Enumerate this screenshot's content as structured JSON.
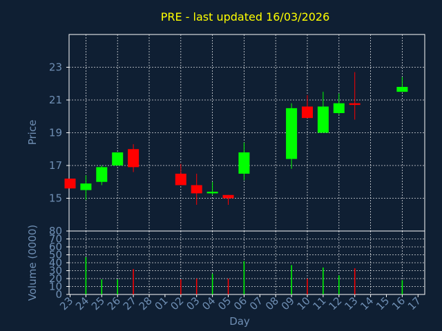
{
  "chart_data": [
    {
      "type": "candlestick",
      "title": "PRE - last updated 16/03/2026",
      "ylabel": "Price",
      "ylim": [
        13.0,
        25.0
      ],
      "yticks": [
        15,
        17,
        19,
        21,
        23
      ],
      "grid": true,
      "colors": {
        "up": "#00ff00",
        "down": "#ff0000",
        "grid": "#ffffff",
        "frame": "#ffffff",
        "text": "#6f8fb4",
        "title": "#ffff00",
        "background": "#0f1f33"
      },
      "x": [
        "23",
        "24",
        "25",
        "26",
        "27",
        "28",
        "01",
        "02",
        "03",
        "04",
        "05",
        "06",
        "07",
        "08",
        "09",
        "10",
        "11",
        "12",
        "13",
        "14",
        "15",
        "16",
        "17"
      ],
      "candles": [
        {
          "x": "23",
          "open": 16.2,
          "high": 16.2,
          "low": 15.6,
          "close": 15.6
        },
        {
          "x": "24",
          "open": 15.5,
          "high": 16.4,
          "low": 14.9,
          "close": 15.9
        },
        {
          "x": "25",
          "open": 16.0,
          "high": 17.0,
          "low": 15.8,
          "close": 16.9
        },
        {
          "x": "26",
          "open": 17.0,
          "high": 17.8,
          "low": 17.0,
          "close": 17.8
        },
        {
          "x": "27",
          "open": 18.0,
          "high": 18.3,
          "low": 16.6,
          "close": 16.9
        },
        {
          "x": "02",
          "open": 16.5,
          "high": 17.1,
          "low": 15.8,
          "close": 15.8
        },
        {
          "x": "03",
          "open": 15.8,
          "high": 16.5,
          "low": 14.6,
          "close": 15.3
        },
        {
          "x": "04",
          "open": 15.3,
          "high": 16.0,
          "low": 15.2,
          "close": 15.4
        },
        {
          "x": "05",
          "open": 15.2,
          "high": 15.2,
          "low": 14.6,
          "close": 15.0
        },
        {
          "x": "06",
          "open": 16.5,
          "high": 18.4,
          "low": 16.1,
          "close": 17.8
        },
        {
          "x": "09",
          "open": 17.4,
          "high": 20.8,
          "low": 16.8,
          "close": 20.5
        },
        {
          "x": "10",
          "open": 20.6,
          "high": 21.3,
          "low": 19.9,
          "close": 19.9
        },
        {
          "x": "11",
          "open": 19.0,
          "high": 21.5,
          "low": 19.0,
          "close": 20.6
        },
        {
          "x": "12",
          "open": 20.2,
          "high": 21.4,
          "low": 20.1,
          "close": 20.8
        },
        {
          "x": "13",
          "open": 20.8,
          "high": 22.7,
          "low": 19.8,
          "close": 20.7
        },
        {
          "x": "16",
          "open": 21.5,
          "high": 22.4,
          "low": 21.5,
          "close": 21.8
        }
      ]
    },
    {
      "type": "bar",
      "ylabel": "Volume (0000)",
      "xlabel": "Day",
      "ylim": [
        0,
        80
      ],
      "yticks": [
        0,
        10,
        20,
        30,
        40,
        50,
        60,
        70,
        80
      ],
      "grid": true,
      "categories": [
        "23",
        "24",
        "25",
        "26",
        "27",
        "28",
        "01",
        "02",
        "03",
        "04",
        "05",
        "06",
        "07",
        "08",
        "09",
        "10",
        "11",
        "12",
        "13",
        "14",
        "15",
        "16",
        "17"
      ],
      "bars": [
        {
          "x": "24",
          "value": 47,
          "direction": "up"
        },
        {
          "x": "25",
          "value": 19,
          "direction": "up"
        },
        {
          "x": "26",
          "value": 19,
          "direction": "up"
        },
        {
          "x": "27",
          "value": 32,
          "direction": "down"
        },
        {
          "x": "02",
          "value": 19,
          "direction": "down"
        },
        {
          "x": "03",
          "value": 20,
          "direction": "down"
        },
        {
          "x": "04",
          "value": 26,
          "direction": "up"
        },
        {
          "x": "05",
          "value": 20,
          "direction": "down"
        },
        {
          "x": "06",
          "value": 42,
          "direction": "up"
        },
        {
          "x": "09",
          "value": 37,
          "direction": "up"
        },
        {
          "x": "10",
          "value": 20,
          "direction": "down"
        },
        {
          "x": "11",
          "value": 34,
          "direction": "up"
        },
        {
          "x": "12",
          "value": 24,
          "direction": "up"
        },
        {
          "x": "13",
          "value": 33,
          "direction": "down"
        },
        {
          "x": "16",
          "value": 18,
          "direction": "up"
        }
      ]
    }
  ]
}
